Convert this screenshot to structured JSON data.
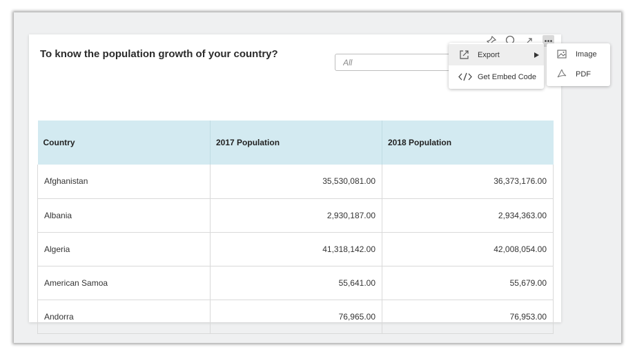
{
  "widget": {
    "title": "To know the population growth of your country?",
    "filter_placeholder": "All"
  },
  "toolbar": {
    "icons": [
      "pin-icon",
      "comment-icon",
      "expand-icon",
      "more-options-icon"
    ]
  },
  "table": {
    "columns": [
      "Country",
      "2017 Population",
      "2018 Population"
    ],
    "rows": [
      {
        "country": "Afghanistan",
        "pop_2017": "35,530,081.00",
        "pop_2018": "36,373,176.00"
      },
      {
        "country": "Albania",
        "pop_2017": "2,930,187.00",
        "pop_2018": "2,934,363.00"
      },
      {
        "country": "Algeria",
        "pop_2017": "41,318,142.00",
        "pop_2018": "42,008,054.00"
      },
      {
        "country": "American Samoa",
        "pop_2017": "55,641.00",
        "pop_2018": "55,679.00"
      },
      {
        "country": "Andorra",
        "pop_2017": "76,965.00",
        "pop_2018": "76,953.00"
      }
    ]
  },
  "menu": {
    "items": [
      {
        "label": "Export",
        "icon": "export-icon"
      },
      {
        "label": "Get Embed Code",
        "icon": "code-icon"
      }
    ]
  },
  "submenu": {
    "items": [
      {
        "label": "Image",
        "icon": "image-icon"
      },
      {
        "label": "PDF",
        "icon": "pdf-icon"
      }
    ]
  },
  "colors": {
    "header_bg": "#d3eaf1",
    "frame_bg": "#eff0f1",
    "menu_active_bg": "#eeeeee"
  }
}
